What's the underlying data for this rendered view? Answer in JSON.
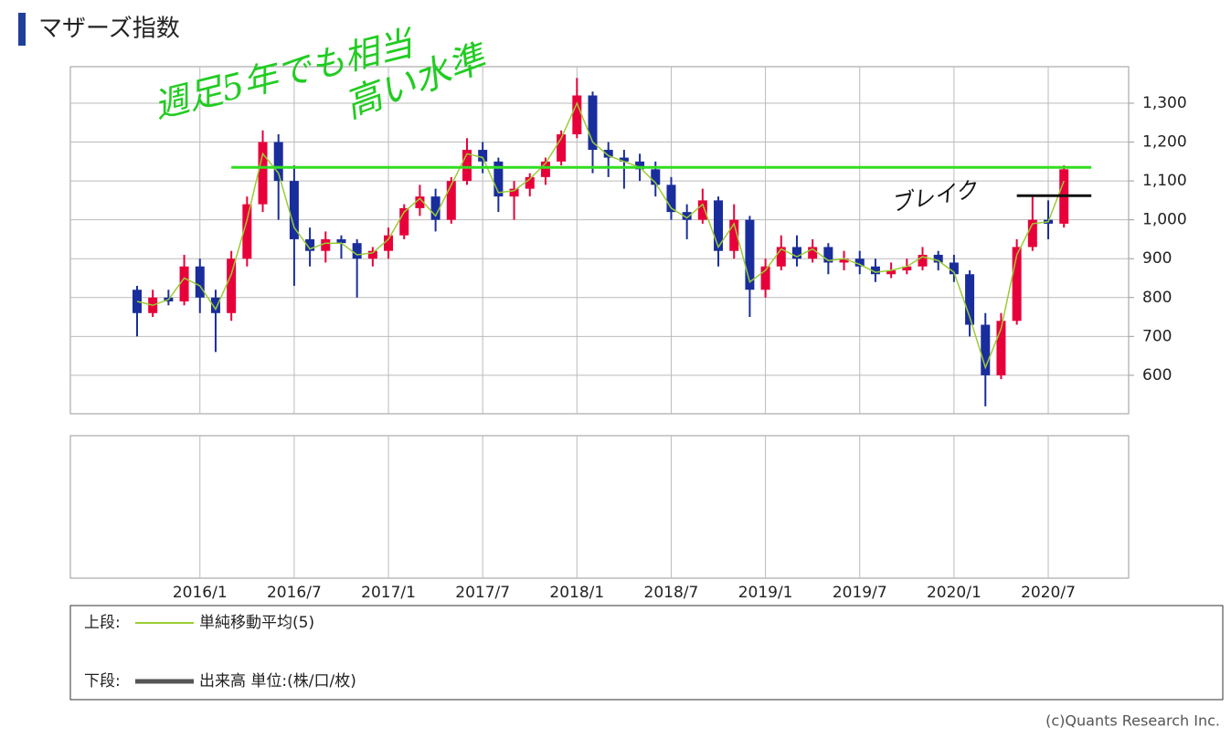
{
  "chart_data": {
    "type": "candlestick",
    "title": "マザーズ指数",
    "x": [
      "2015/9",
      "2015/10",
      "2015/11",
      "2015/12",
      "2016/1",
      "2016/2",
      "2016/3",
      "2016/4",
      "2016/5",
      "2016/6",
      "2016/7",
      "2016/8",
      "2016/9",
      "2016/10",
      "2016/11",
      "2016/12",
      "2017/1",
      "2017/2",
      "2017/3",
      "2017/4",
      "2017/5",
      "2017/6",
      "2017/7",
      "2017/8",
      "2017/9",
      "2017/10",
      "2017/11",
      "2017/12",
      "2018/1",
      "2018/2",
      "2018/3",
      "2018/4",
      "2018/5",
      "2018/6",
      "2018/7",
      "2018/8",
      "2018/9",
      "2018/10",
      "2018/11",
      "2018/12",
      "2019/1",
      "2019/2",
      "2019/3",
      "2019/4",
      "2019/5",
      "2019/6",
      "2019/7",
      "2019/8",
      "2019/9",
      "2019/10",
      "2019/11",
      "2019/12",
      "2020/1",
      "2020/2",
      "2020/3",
      "2020/4",
      "2020/5",
      "2020/6",
      "2020/7",
      "2020/8"
    ],
    "open": [
      820,
      760,
      800,
      790,
      880,
      800,
      760,
      900,
      1040,
      1200,
      1100,
      950,
      920,
      950,
      940,
      900,
      920,
      960,
      1030,
      1060,
      1000,
      1100,
      1180,
      1150,
      1060,
      1080,
      1110,
      1150,
      1220,
      1320,
      1180,
      1160,
      1150,
      1130,
      1090,
      1020,
      1000,
      1050,
      920,
      1000,
      820,
      880,
      930,
      900,
      930,
      890,
      900,
      880,
      860,
      870,
      880,
      910,
      890,
      860,
      730,
      600,
      740,
      930,
      1000,
      990
    ],
    "high": [
      830,
      820,
      820,
      910,
      900,
      820,
      920,
      1060,
      1230,
      1220,
      1140,
      980,
      970,
      960,
      950,
      930,
      980,
      1040,
      1090,
      1080,
      1110,
      1210,
      1200,
      1160,
      1100,
      1120,
      1160,
      1230,
      1365,
      1330,
      1200,
      1180,
      1170,
      1150,
      1110,
      1040,
      1080,
      1060,
      1040,
      1010,
      900,
      960,
      960,
      950,
      940,
      920,
      920,
      900,
      890,
      900,
      930,
      920,
      910,
      870,
      760,
      760,
      950,
      1060,
      1050,
      1140
    ],
    "low": [
      700,
      750,
      780,
      780,
      760,
      660,
      740,
      880,
      1020,
      1000,
      830,
      880,
      890,
      900,
      800,
      880,
      900,
      950,
      1010,
      970,
      990,
      1090,
      1120,
      1020,
      1000,
      1060,
      1090,
      1140,
      1210,
      1120,
      1110,
      1080,
      1100,
      1060,
      1000,
      950,
      990,
      880,
      900,
      750,
      800,
      870,
      880,
      890,
      860,
      870,
      860,
      840,
      850,
      860,
      870,
      870,
      840,
      700,
      520,
      590,
      730,
      920,
      950,
      980
    ],
    "close": [
      760,
      800,
      790,
      880,
      800,
      760,
      900,
      1040,
      1200,
      1100,
      950,
      920,
      950,
      940,
      900,
      920,
      960,
      1030,
      1060,
      1000,
      1100,
      1180,
      1150,
      1060,
      1080,
      1110,
      1150,
      1220,
      1320,
      1180,
      1160,
      1150,
      1130,
      1090,
      1020,
      1000,
      1050,
      920,
      1000,
      820,
      880,
      930,
      900,
      930,
      890,
      900,
      880,
      860,
      870,
      880,
      910,
      890,
      860,
      730,
      600,
      740,
      930,
      1000,
      990,
      1130
    ],
    "up_color": "#e8003a",
    "down_color": "#1a2d9c",
    "ma": {
      "name": "単純移動平均(5)",
      "color": "#9acd32",
      "values": [
        790,
        780,
        795,
        850,
        830,
        770,
        860,
        1000,
        1170,
        1120,
        980,
        925,
        940,
        940,
        910,
        915,
        950,
        1020,
        1055,
        1010,
        1090,
        1170,
        1160,
        1070,
        1075,
        1105,
        1145,
        1210,
        1300,
        1200,
        1165,
        1150,
        1135,
        1095,
        1030,
        1005,
        1040,
        930,
        990,
        840,
        870,
        925,
        905,
        925,
        895,
        900,
        885,
        865,
        870,
        880,
        905,
        895,
        865,
        750,
        620,
        720,
        910,
        990,
        995,
        1100
      ]
    },
    "ylim": [
      501,
      1394
    ],
    "yticks": [
      600,
      700,
      800,
      900,
      {
        "value": 1000,
        "label": "1,000"
      },
      {
        "value": 1100,
        "label": "1,100"
      },
      {
        "value": 1200,
        "label": "1,200"
      },
      {
        "value": 1300,
        "label": "1,300"
      }
    ],
    "xticks": [
      "2016/1",
      "2016/7",
      "2017/1",
      "2017/7",
      "2018/1",
      "2018/7",
      "2019/1",
      "2019/7",
      "2020/1",
      "2020/7"
    ],
    "grid": true,
    "hlines": [
      {
        "value": 1135,
        "color": "#33dd22",
        "from": "2016/3",
        "to": "2020/8"
      },
      {
        "value": 1062,
        "color": "#111111",
        "from": "2020/5",
        "to": "2020/8"
      }
    ],
    "annotations": [
      {
        "text": "週足5年でも相当",
        "color": "#22cc22"
      },
      {
        "text": "高い水準",
        "color": "#22cc22"
      },
      {
        "text": "ブレイク",
        "color": "#111111"
      }
    ],
    "legend": {
      "upper_label": "上段:",
      "lower_label": "下段:",
      "volume_name": "出来高 単位:(株/口/枚)",
      "volume_color": "#555555"
    },
    "credit": "(c)Quants Research Inc."
  }
}
